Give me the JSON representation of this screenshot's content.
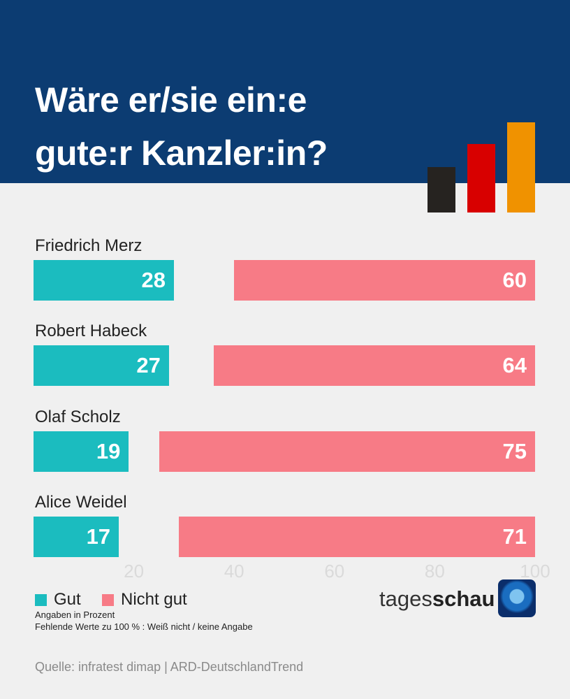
{
  "title_lines": [
    "Wäre er/sie ein:e",
    "gute:r Kanzler:in?"
  ],
  "colors": {
    "header": "#0c3c72",
    "gut": "#1bbcbf",
    "nicht_gut": "#f77b86",
    "flag": [
      "#262320",
      "#d80000",
      "#f09200"
    ]
  },
  "chart_data": {
    "type": "bar",
    "title": "Wäre er/sie ein:e gute:r Kanzler:in?",
    "categories": [
      "Friedrich Merz",
      "Robert Habeck",
      "Olaf Scholz",
      "Alice Weidel"
    ],
    "series": [
      {
        "name": "Gut",
        "values": [
          28,
          27,
          19,
          17
        ]
      },
      {
        "name": "Nicht gut",
        "values": [
          60,
          64,
          75,
          71
        ]
      }
    ],
    "xlim": [
      0,
      100
    ],
    "xticks": [
      "20",
      "40",
      "60",
      "80",
      "100"
    ],
    "unit": "Angaben in Prozent",
    "legend": "bottom-left"
  },
  "notes": [
    "Angaben in Prozent",
    "Fehlende Werte zu 100 % :  Weiß nicht / keine Angabe"
  ],
  "logo": {
    "text_light": "tages",
    "text_bold": "schau"
  },
  "source": "Quelle: infratest dimap | ARD-DeutschlandTrend"
}
